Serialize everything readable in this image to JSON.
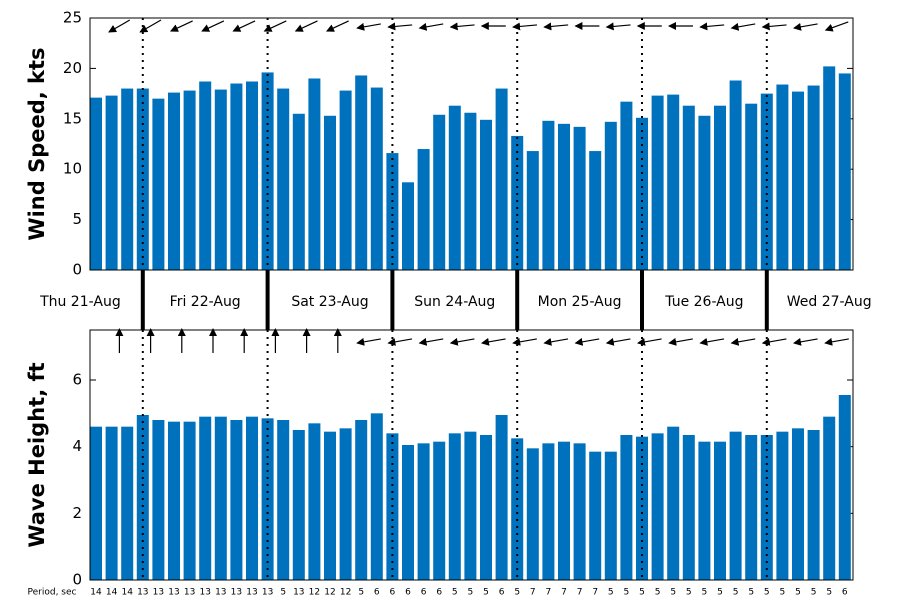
{
  "chart_data": [
    {
      "type": "bar",
      "ylabel": "Wind Speed, kts",
      "color": "#0072bd",
      "ylim": [
        0,
        25
      ],
      "yticks": [
        0,
        5,
        10,
        15,
        20,
        25
      ],
      "categories": [
        "Thu 21-Aug",
        "Fri 22-Aug",
        "Sat 23-Aug",
        "Sun 24-Aug",
        "Mon 25-Aug",
        "Tue 26-Aug",
        "Wed 27-Aug"
      ],
      "values": [
        [
          17.1,
          17.3,
          18.0
        ],
        [
          18.0,
          17.0,
          17.6,
          17.8,
          18.7,
          17.9,
          18.5,
          18.7
        ],
        [
          19.6,
          18.0,
          15.5,
          19.0,
          15.3,
          17.8,
          19.3,
          18.1
        ],
        [
          11.6,
          8.7,
          12.0,
          15.4,
          16.3,
          15.6,
          14.9,
          18.0
        ],
        [
          13.3,
          11.8,
          14.8,
          14.5,
          14.2,
          11.8,
          14.7,
          16.7
        ],
        [
          15.1,
          17.3,
          17.4,
          16.3,
          15.3,
          16.3,
          18.8,
          16.5
        ],
        [
          17.5,
          18.4,
          17.7,
          18.3,
          20.2,
          19.5
        ]
      ],
      "arrow_directions": [
        210,
        210,
        205,
        205,
        205,
        205,
        205,
        205,
        190,
        185,
        190,
        185,
        180,
        185,
        185,
        180,
        185,
        180,
        180,
        185,
        190,
        185,
        190,
        200
      ]
    },
    {
      "type": "bar",
      "ylabel": "Wave Height, ft",
      "color": "#0072bd",
      "ylim": [
        0,
        7.5
      ],
      "yticks": [
        0,
        2,
        4,
        6
      ],
      "values": [
        [
          4.6,
          4.6,
          4.6
        ],
        [
          4.95,
          4.8,
          4.75,
          4.75,
          4.9,
          4.9,
          4.8,
          4.9
        ],
        [
          4.85,
          4.8,
          4.5,
          4.7,
          4.45,
          4.55,
          4.8,
          5.0
        ],
        [
          4.4,
          4.05,
          4.1,
          4.15,
          4.4,
          4.45,
          4.35,
          4.95
        ],
        [
          4.25,
          3.95,
          4.1,
          4.15,
          4.1,
          3.85,
          3.85,
          4.35
        ],
        [
          4.3,
          4.4,
          4.6,
          4.35,
          4.15,
          4.15,
          4.45,
          4.35
        ],
        [
          4.35,
          4.45,
          4.55,
          4.5,
          4.9,
          5.55
        ]
      ],
      "period_label": "Period, sec",
      "periods": [
        [
          14,
          14,
          14
        ],
        [
          13,
          13,
          13,
          13,
          13,
          13,
          13,
          13
        ],
        [
          13,
          5,
          13,
          12,
          12,
          12,
          5,
          6
        ],
        [
          6,
          6,
          6,
          6,
          5,
          5,
          5,
          6
        ],
        [
          5,
          7,
          7,
          7,
          7,
          7,
          5,
          5
        ],
        [
          5,
          5,
          5,
          5,
          5,
          5,
          5,
          5
        ],
        [
          5,
          5,
          5,
          5,
          5,
          6
        ]
      ],
      "arrow_directions": [
        90,
        90,
        90,
        90,
        90,
        90,
        90,
        90,
        190,
        190,
        190,
        190,
        190,
        190,
        190,
        190,
        190,
        190,
        190,
        190,
        190,
        190,
        190,
        190
      ]
    }
  ]
}
